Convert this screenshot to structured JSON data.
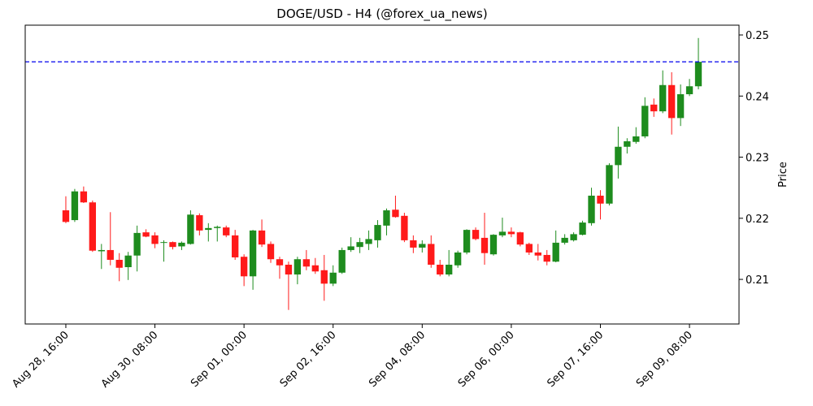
{
  "chart_data": {
    "type": "candlestick",
    "title": "DOGE/USD - H4 (@forex_ua_news)",
    "y_label": "Price",
    "categories": [
      "Aug 28, 16:00",
      null,
      null,
      null,
      null,
      null,
      null,
      null,
      null,
      null,
      "Aug 30, 08:00",
      null,
      null,
      null,
      null,
      null,
      null,
      null,
      null,
      null,
      "Sep 01, 00:00",
      null,
      null,
      null,
      null,
      null,
      null,
      null,
      null,
      null,
      "Sep 02, 16:00",
      null,
      null,
      null,
      null,
      null,
      null,
      null,
      null,
      null,
      "Sep 04, 08:00",
      null,
      null,
      null,
      null,
      null,
      null,
      null,
      null,
      null,
      "Sep 06, 00:00",
      null,
      null,
      null,
      null,
      null,
      null,
      null,
      null,
      null,
      "Sep 07, 16:00",
      null,
      null,
      null,
      null,
      null,
      null,
      null,
      null,
      null,
      "Sep 09, 08:00",
      null
    ],
    "open": [
      0.2213,
      0.2197,
      0.2244,
      0.2226,
      0.2146,
      0.2148,
      0.2132,
      0.212,
      0.2139,
      0.2177,
      0.2172,
      0.216,
      0.2161,
      0.2154,
      0.2158,
      0.2205,
      0.2181,
      0.2184,
      0.2185,
      0.2172,
      0.2137,
      0.2105,
      0.218,
      0.2158,
      0.2133,
      0.2124,
      0.2108,
      0.2133,
      0.2123,
      0.2115,
      0.2093,
      0.2111,
      0.2148,
      0.2153,
      0.2158,
      0.2164,
      0.2188,
      0.2214,
      0.2204,
      0.2164,
      0.2152,
      0.2158,
      0.2124,
      0.2108,
      0.2123,
      0.2144,
      0.2181,
      0.2168,
      0.2141,
      0.2172,
      0.2178,
      0.2177,
      0.2158,
      0.2144,
      0.214,
      0.2129,
      0.216,
      0.2164,
      0.2173,
      0.2192,
      0.2237,
      0.2224,
      0.2287,
      0.2317,
      0.2325,
      0.2334,
      0.2386,
      0.2375,
      0.2418,
      0.2364,
      0.2403,
      0.2416
    ],
    "high": [
      0.2236,
      0.2248,
      0.2252,
      0.2229,
      0.2158,
      0.221,
      0.2143,
      0.2145,
      0.2188,
      0.2182,
      0.2177,
      0.2164,
      0.2162,
      0.2162,
      0.2213,
      0.2208,
      0.2192,
      0.2188,
      0.2188,
      0.2181,
      0.2141,
      0.2181,
      0.2198,
      0.2162,
      0.2137,
      0.2129,
      0.2137,
      0.2148,
      0.2135,
      0.214,
      0.2123,
      0.2152,
      0.2169,
      0.2168,
      0.218,
      0.2197,
      0.2216,
      0.2237,
      0.2209,
      0.2172,
      0.2164,
      0.2172,
      0.2132,
      0.2148,
      0.2147,
      0.2182,
      0.2185,
      0.2209,
      0.2174,
      0.2201,
      0.2185,
      0.2178,
      0.216,
      0.2158,
      0.2148,
      0.218,
      0.2174,
      0.2177,
      0.2196,
      0.225,
      0.2246,
      0.229,
      0.235,
      0.2331,
      0.2349,
      0.2398,
      0.2396,
      0.2442,
      0.2439,
      0.2419,
      0.2428,
      0.2495
    ],
    "low": [
      0.2192,
      0.2194,
      0.2225,
      0.2145,
      0.2117,
      0.2123,
      0.2097,
      0.2099,
      0.2113,
      0.2169,
      0.2151,
      0.2129,
      0.2149,
      0.2148,
      0.2157,
      0.2172,
      0.2162,
      0.2162,
      0.2169,
      0.2132,
      0.2089,
      0.2083,
      0.2153,
      0.2127,
      0.2101,
      0.205,
      0.2092,
      0.2115,
      0.2109,
      0.2065,
      0.2089,
      0.2109,
      0.2145,
      0.2143,
      0.2148,
      0.2152,
      0.2172,
      0.2201,
      0.2161,
      0.2143,
      0.2144,
      0.2119,
      0.2105,
      0.2105,
      0.2119,
      0.2141,
      0.2164,
      0.2124,
      0.2139,
      0.2169,
      0.2169,
      0.2154,
      0.214,
      0.2131,
      0.2123,
      0.2128,
      0.2157,
      0.2162,
      0.2172,
      0.2188,
      0.2198,
      0.2221,
      0.2265,
      0.2306,
      0.2322,
      0.2331,
      0.2366,
      0.2372,
      0.2337,
      0.2351,
      0.24,
      0.2411
    ],
    "close": [
      0.2194,
      0.2244,
      0.2226,
      0.2147,
      0.2148,
      0.2132,
      0.2119,
      0.2139,
      0.2176,
      0.217,
      0.2158,
      0.2161,
      0.2153,
      0.216,
      0.2206,
      0.218,
      0.2184,
      0.2186,
      0.2172,
      0.2136,
      0.2105,
      0.218,
      0.2157,
      0.2133,
      0.2123,
      0.2108,
      0.2133,
      0.2121,
      0.2113,
      0.2093,
      0.2111,
      0.2148,
      0.2154,
      0.2161,
      0.2166,
      0.2189,
      0.2213,
      0.2202,
      0.2164,
      0.2152,
      0.2158,
      0.2124,
      0.2108,
      0.2124,
      0.2144,
      0.2181,
      0.2166,
      0.2143,
      0.2173,
      0.2178,
      0.2174,
      0.2157,
      0.2144,
      0.2139,
      0.2129,
      0.216,
      0.2168,
      0.2174,
      0.2193,
      0.2237,
      0.2224,
      0.2287,
      0.2317,
      0.2326,
      0.2334,
      0.2384,
      0.2375,
      0.2418,
      0.2364,
      0.2403,
      0.2416,
      0.2456
    ],
    "up_color": "#1e8c1e",
    "down_color": "#ff1a1a",
    "ylim": [
      0.2027,
      0.2516
    ],
    "yticks": [
      0.21,
      0.22,
      0.23,
      0.24,
      0.25
    ],
    "hline": {
      "value": 0.2456,
      "color": "#0000ee",
      "style": "dashed"
    }
  }
}
